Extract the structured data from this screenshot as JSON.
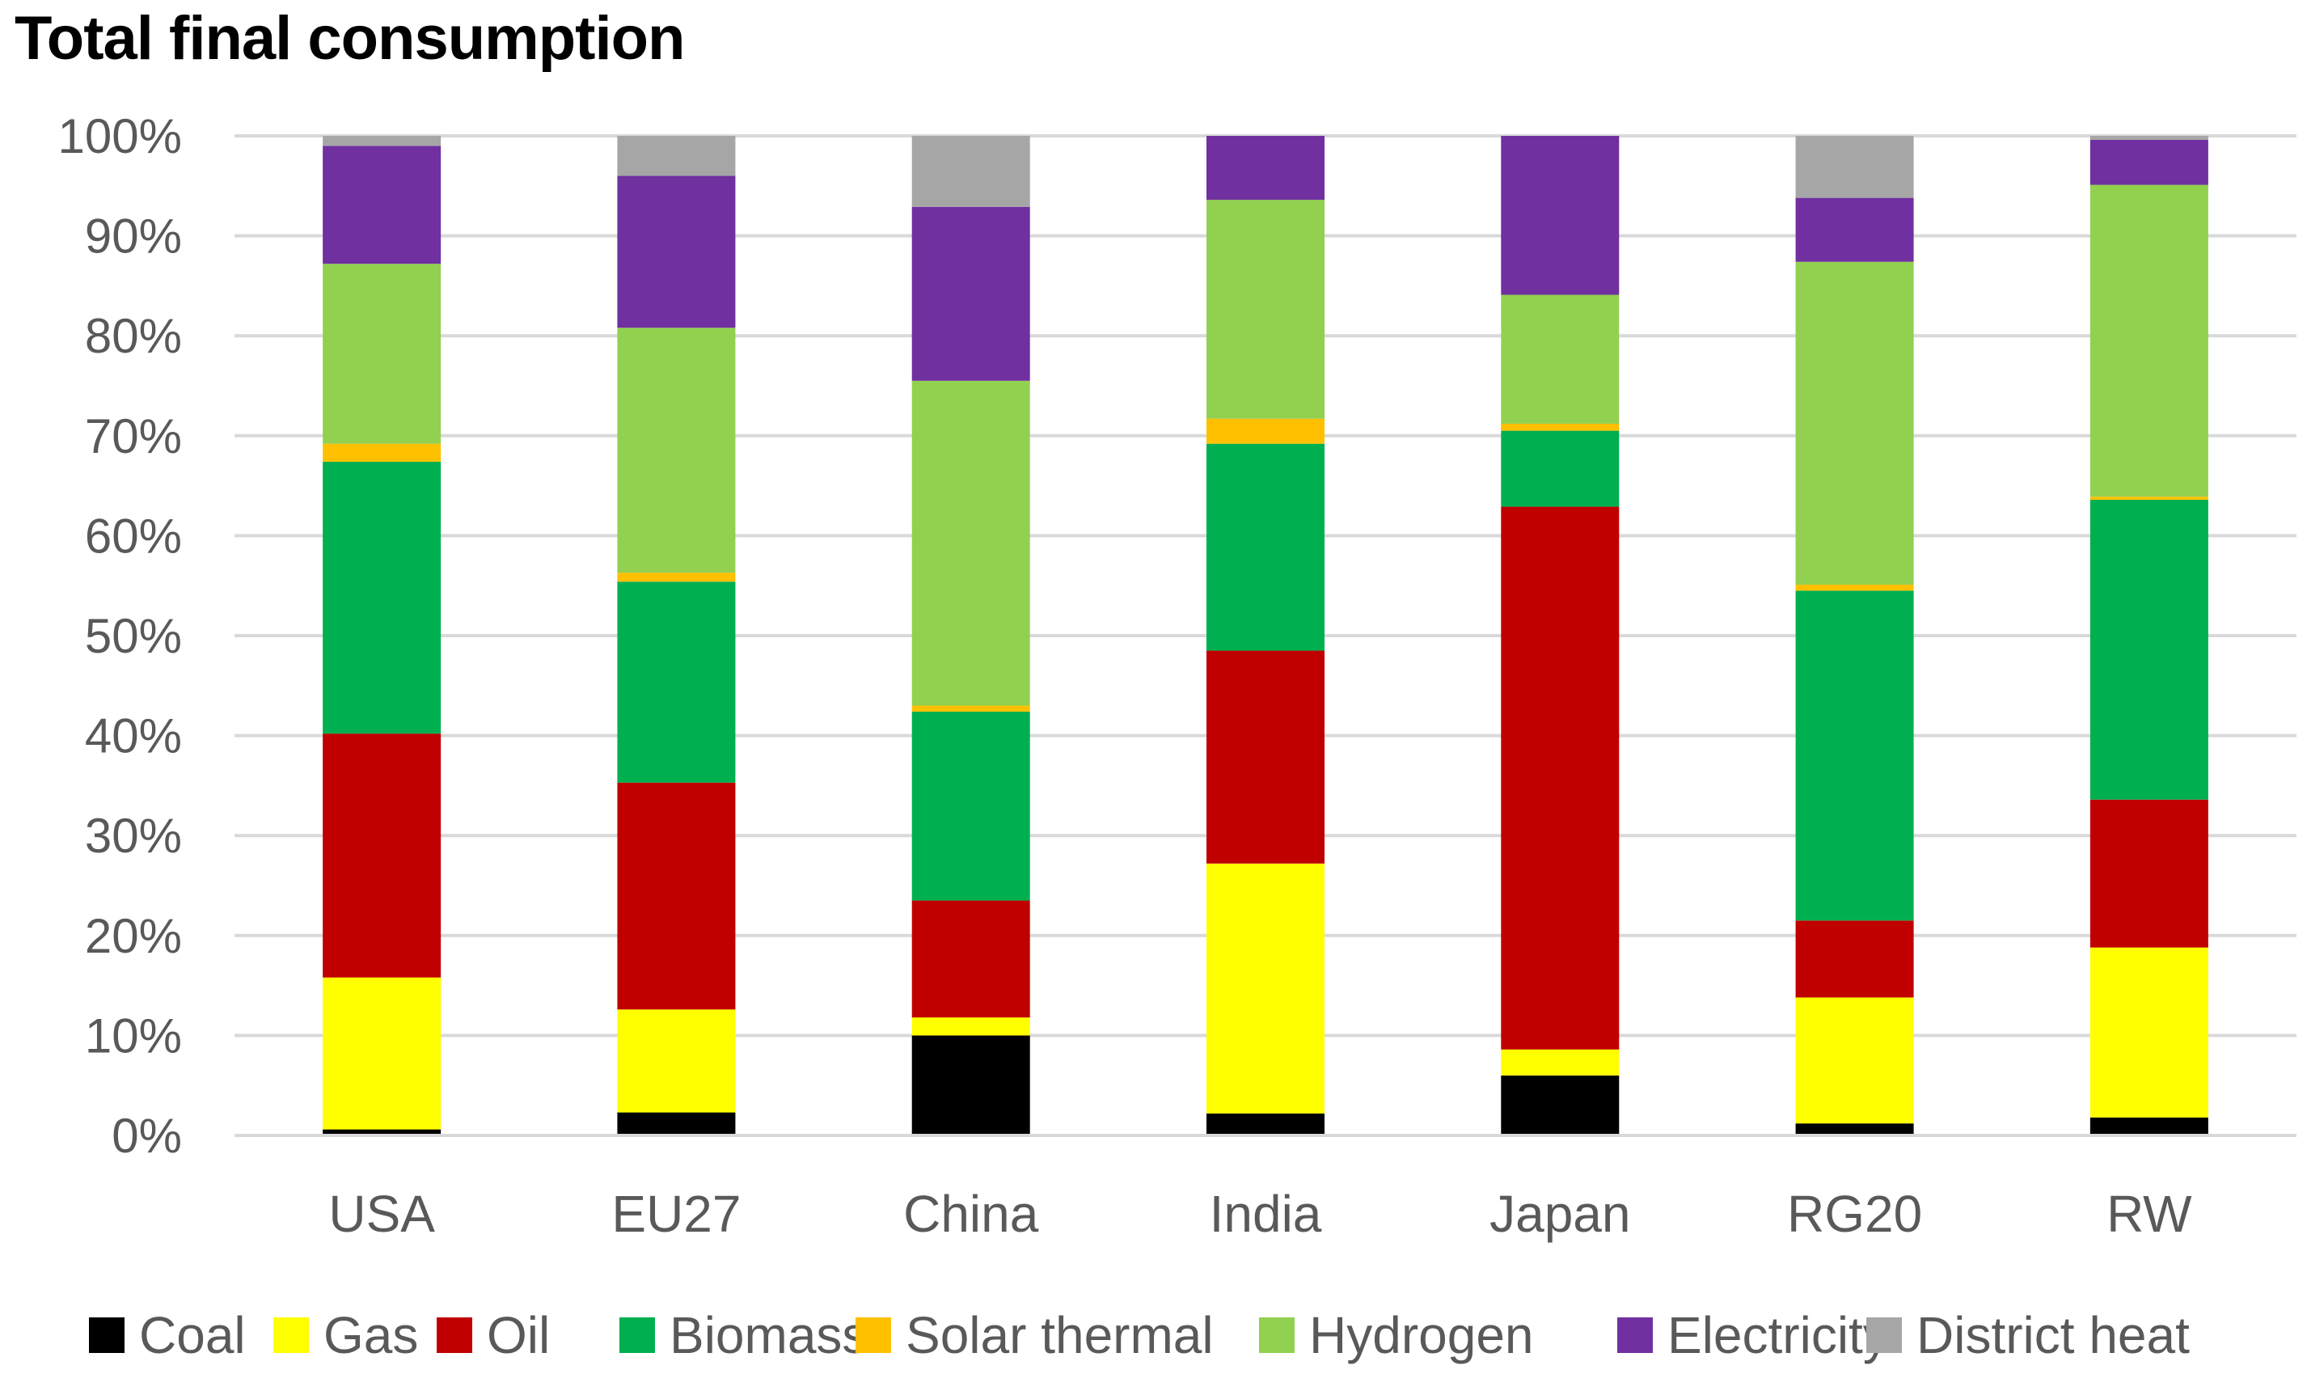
{
  "chart_data": {
    "type": "bar",
    "stacked": true,
    "title": "Total final consumption",
    "xlabel": "",
    "ylabel": "",
    "ylim": [
      0,
      100
    ],
    "yticks": [
      "0%",
      "10%",
      "20%",
      "30%",
      "40%",
      "50%",
      "60%",
      "70%",
      "80%",
      "90%",
      "100%"
    ],
    "grid": true,
    "legend_position": "bottom",
    "categories": [
      "USA",
      "EU27",
      "China",
      "India",
      "Japan",
      "RG20",
      "RW"
    ],
    "series": [
      {
        "name": "Coal",
        "color": "#000000",
        "values": [
          0.6,
          2.3,
          10.0,
          2.2,
          6.0,
          1.2,
          1.8
        ]
      },
      {
        "name": "Gas",
        "color": "#FFFF00",
        "values": [
          15.2,
          10.3,
          1.8,
          25.0,
          2.6,
          12.6,
          17.0
        ]
      },
      {
        "name": "Oil",
        "color": "#C00000",
        "values": [
          24.4,
          22.7,
          11.7,
          21.3,
          54.3,
          7.7,
          14.8
        ]
      },
      {
        "name": "Biomass",
        "color": "#00B050",
        "values": [
          27.2,
          20.1,
          18.9,
          20.7,
          7.6,
          33.0,
          30.0
        ]
      },
      {
        "name": "Solar thermal",
        "color": "#FFC000",
        "values": [
          1.8,
          0.9,
          0.6,
          2.5,
          0.7,
          0.6,
          0.3
        ]
      },
      {
        "name": "Hydrogen",
        "color": "#92D050",
        "values": [
          18.0,
          24.5,
          32.5,
          21.9,
          12.9,
          32.3,
          31.2
        ]
      },
      {
        "name": "Electricity",
        "color": "#7030A0",
        "values": [
          11.8,
          15.2,
          17.4,
          6.4,
          15.9,
          6.4,
          4.5
        ]
      },
      {
        "name": "District heat",
        "color": "#A6A6A6",
        "values": [
          1.0,
          4.0,
          7.1,
          0.0,
          0.0,
          6.2,
          0.4
        ]
      }
    ]
  }
}
